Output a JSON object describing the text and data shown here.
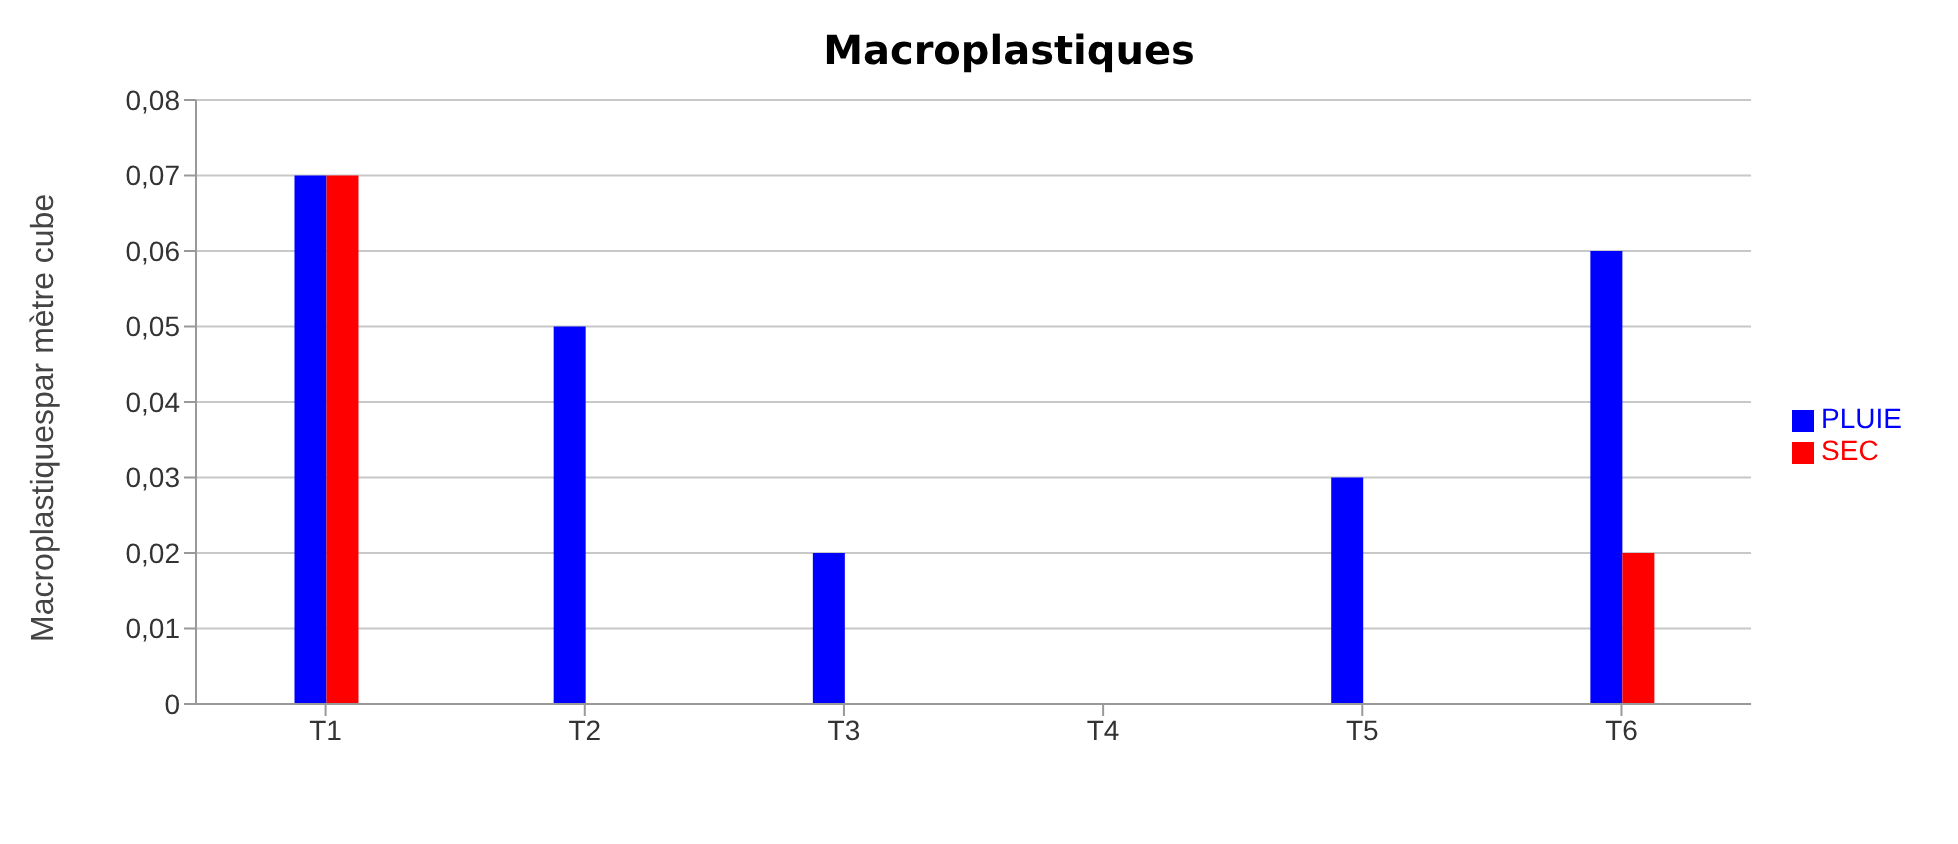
{
  "chart_data": {
    "type": "bar",
    "title": "Macroplastiques",
    "ylabel": "Macroplastiquespar mètre cube",
    "categories": [
      "T1",
      "T2",
      "T3",
      "T4",
      "T5",
      "T6"
    ],
    "series": [
      {
        "name": "PLUIE",
        "color": "#0000ff",
        "values": [
          0.07,
          0.05,
          0.02,
          0,
          0.03,
          0.06
        ]
      },
      {
        "name": "SEC",
        "color": "#ff0000",
        "values": [
          0.07,
          0,
          0,
          0,
          0,
          0.02
        ]
      }
    ],
    "ylim": [
      0,
      0.08
    ],
    "yticks": [
      0,
      {
        "value": 0.01,
        "label": "0,01"
      },
      {
        "value": 0.02,
        "label": "0,02"
      },
      {
        "value": 0.03,
        "label": "0,03"
      },
      {
        "value": 0.04,
        "label": "0,04"
      },
      {
        "value": 0.05,
        "label": "0,05"
      },
      {
        "value": 0.06,
        "label": "0,06"
      },
      {
        "value": 0.07,
        "label": "0,07"
      },
      {
        "value": 0.08,
        "label": "0,08"
      }
    ],
    "grid": "y",
    "legend": "right"
  }
}
